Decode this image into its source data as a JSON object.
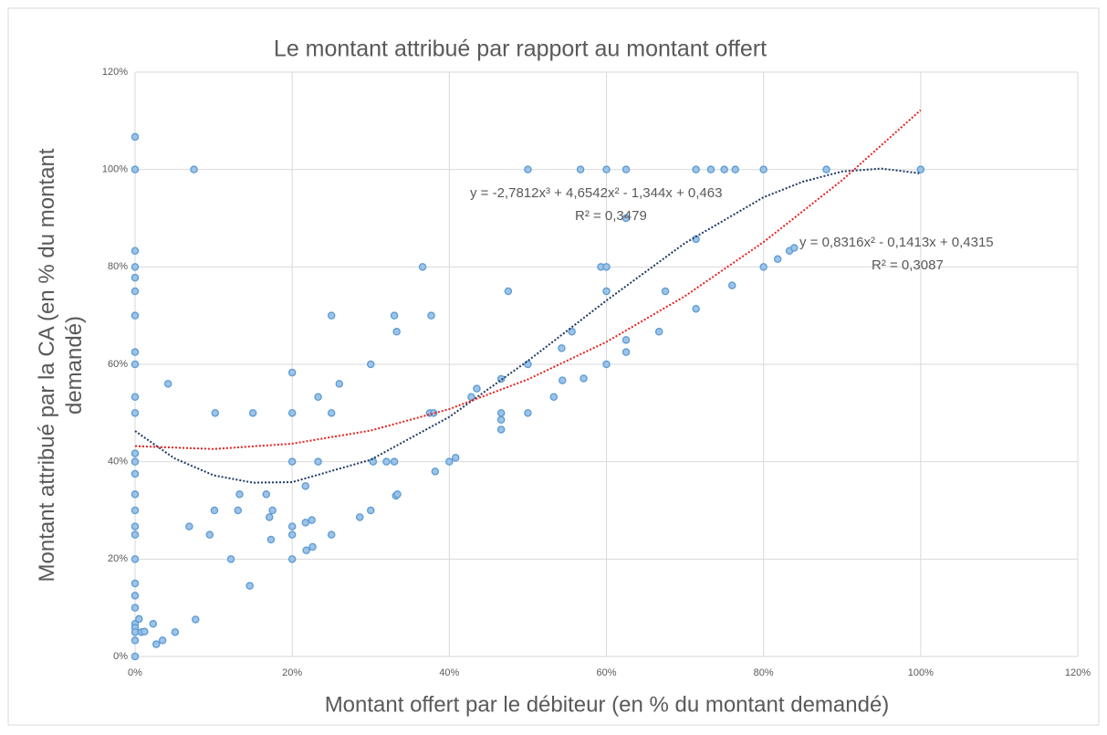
{
  "chart_data": {
    "type": "scatter",
    "title": "Le montant attribué par rapport au montant offert",
    "x_label": "Montant offert par le débiteur (en % du montant demandé)",
    "y_label": "Montant attribué par la CA (en % du montant demandé)",
    "xlim": [
      0,
      120
    ],
    "ylim": [
      0,
      120
    ],
    "xticks": [
      {
        "value": 0,
        "label": "0%"
      },
      {
        "value": 20,
        "label": "20%"
      },
      {
        "value": 40,
        "label": "40%"
      },
      {
        "value": 60,
        "label": "60%"
      },
      {
        "value": 80,
        "label": "80%"
      },
      {
        "value": 100,
        "label": "100%"
      },
      {
        "value": 120,
        "label": "120%"
      }
    ],
    "yticks": [
      {
        "value": 0,
        "label": "0%"
      },
      {
        "value": 20,
        "label": "20%"
      },
      {
        "value": 40,
        "label": "40%"
      },
      {
        "value": 60,
        "label": "60%"
      },
      {
        "value": 80,
        "label": "80%"
      },
      {
        "value": 100,
        "label": "100%"
      },
      {
        "value": 120,
        "label": "120%"
      }
    ],
    "grid": true,
    "series": [
      {
        "type": "scatter",
        "color": "#5b9bd5",
        "x": [
          0,
          0,
          0,
          0,
          0,
          0,
          0,
          0,
          0,
          0,
          0,
          0,
          0,
          0,
          0,
          0,
          0,
          0,
          0,
          0,
          0,
          0,
          0,
          0,
          0,
          0,
          0,
          0.5,
          0.8,
          1.2,
          2.3,
          2.7,
          3.5,
          4.2,
          5.1,
          6.9,
          7.5,
          7.7,
          9.5,
          10.1,
          10.2,
          12.2,
          13.1,
          13.3,
          14.6,
          15,
          16.7,
          17.1,
          17.3,
          17.5,
          20,
          20,
          20,
          20,
          20,
          20,
          21.7,
          21.7,
          21.8,
          22.5,
          22.6,
          23.3,
          23.3,
          25,
          25,
          25,
          26,
          28.6,
          30,
          30,
          30.3,
          32,
          33,
          33,
          33.2,
          33.3,
          33.4,
          36.6,
          37.5,
          37.7,
          38,
          38.2,
          40,
          40.8,
          42.8,
          43.5,
          46.6,
          46.6,
          46.6,
          46.6,
          47.5,
          50,
          50,
          50,
          53.3,
          54.3,
          54.4,
          55.6,
          56.7,
          57.1,
          59.3,
          60,
          60,
          60,
          60,
          62.5,
          62.5,
          62.5,
          62.5,
          66.7,
          67.5,
          71.4,
          71.4,
          71.4,
          73.3,
          75,
          76.4,
          76,
          80,
          80,
          81.8,
          83.3,
          83.9,
          88,
          100
        ],
        "values": [
          106.7,
          100,
          83.3,
          80,
          77.8,
          75,
          70,
          62.5,
          60,
          53.3,
          50,
          41.7,
          40,
          37.5,
          33.3,
          30,
          26.7,
          25,
          20,
          15,
          12.5,
          10,
          6.7,
          5.9,
          5,
          3.3,
          0,
          7.7,
          5,
          5.1,
          6.7,
          2.5,
          3.3,
          56,
          5,
          26.7,
          100,
          7.6,
          25,
          30,
          50,
          20,
          30,
          33.3,
          14.5,
          50,
          33.3,
          28.6,
          24,
          30,
          58.3,
          50,
          40,
          26.7,
          25,
          20,
          35,
          27.5,
          21.8,
          28,
          22.5,
          53.3,
          40,
          70,
          50,
          25,
          56,
          28.6,
          60,
          30,
          40,
          40,
          70,
          40,
          33,
          66.7,
          33.3,
          80,
          50,
          70,
          50,
          38,
          40,
          40.8,
          53.3,
          55,
          57,
          50,
          48.6,
          46.6,
          75,
          100,
          60,
          50,
          53.3,
          63.3,
          56.7,
          66.7,
          100,
          57.1,
          80,
          100,
          80,
          75,
          60,
          100,
          90,
          65,
          62.5,
          66.7,
          75,
          100,
          85.7,
          71.4,
          100,
          100,
          100,
          76.2,
          100,
          80,
          81.6,
          83.3,
          83.9,
          100,
          100
        ]
      },
      {
        "type": "line",
        "color": "#1f3864",
        "x": [
          0,
          5,
          10,
          15,
          20,
          30,
          40,
          50,
          60,
          70,
          80,
          85,
          90,
          95,
          100
        ],
        "values": [
          46.3,
          40.7,
          37.2,
          35.7,
          35.8,
          40.4,
          49.2,
          60.7,
          73.1,
          84.9,
          94.3,
          97.5,
          99.6,
          100.2,
          99.2
        ]
      },
      {
        "type": "line",
        "color": "#e8201c",
        "x": [
          0,
          10,
          20,
          30,
          40,
          50,
          60,
          70,
          80,
          90,
          100
        ],
        "values": [
          43.2,
          42.6,
          43.7,
          46.4,
          50.8,
          56.9,
          64.6,
          74.0,
          85.1,
          97.8,
          112.2
        ]
      }
    ],
    "annotations": [
      "y = -2,7812x³ + 4,6542x² - 1,344x + 0,463",
      "R² = 0,3479",
      "y = 0,8316x² - 0,1413x + 0,4315",
      "R² = 0,3087"
    ]
  }
}
